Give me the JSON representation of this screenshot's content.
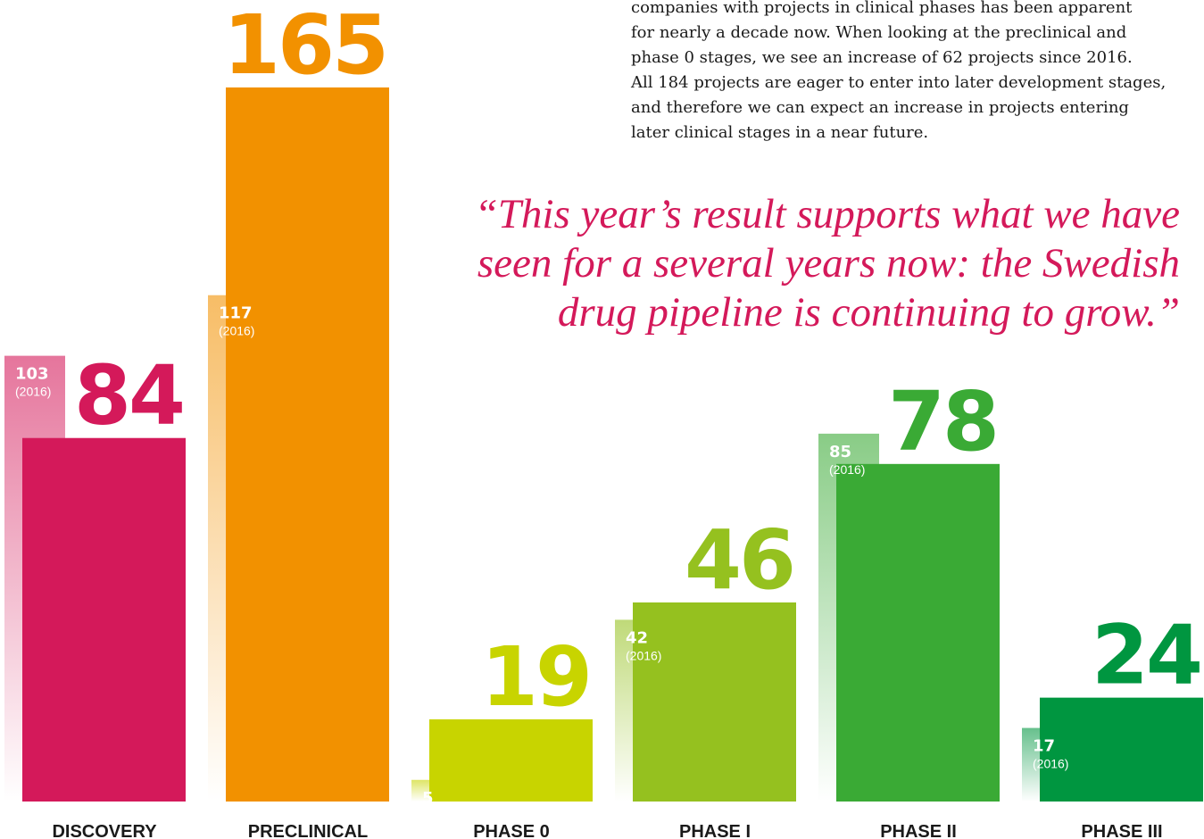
{
  "chart_data": {
    "type": "bar",
    "categories": [
      "DISCOVERY",
      "PRECLINICAL",
      "PHASE 0",
      "PHASE I",
      "PHASE II",
      "PHASE III"
    ],
    "series": [
      {
        "values": [
          84,
          165,
          19,
          46,
          78,
          24
        ],
        "colors": [
          "#d4195a",
          "#f29100",
          "#c8d400",
          "#95c11f",
          "#3aaa35",
          "#009640"
        ]
      },
      {
        "name": "(2016)",
        "values": [
          103,
          117,
          5,
          42,
          85,
          17
        ],
        "colors": [
          "#d4195a",
          "#f29100",
          "#c8d400",
          "#95c11f",
          "#3aaa35",
          "#009640"
        ]
      }
    ]
  },
  "intro_lines": [
    "companies with projects in clinical phases has been apparent",
    "for nearly a decade now. When looking at the preclinical and",
    "phase 0 stages, we see an increase of 62 projects since 2016.",
    "All 184 projects are eager to enter into later development stages,",
    "and therefore we can expect an increase in projects entering",
    "later clinical stages in a near future."
  ],
  "quote_lines": [
    "“This year’s result supports what we have",
    "seen for a several years now: the Swedish",
    "drug pipeline is continuing to grow.”"
  ]
}
